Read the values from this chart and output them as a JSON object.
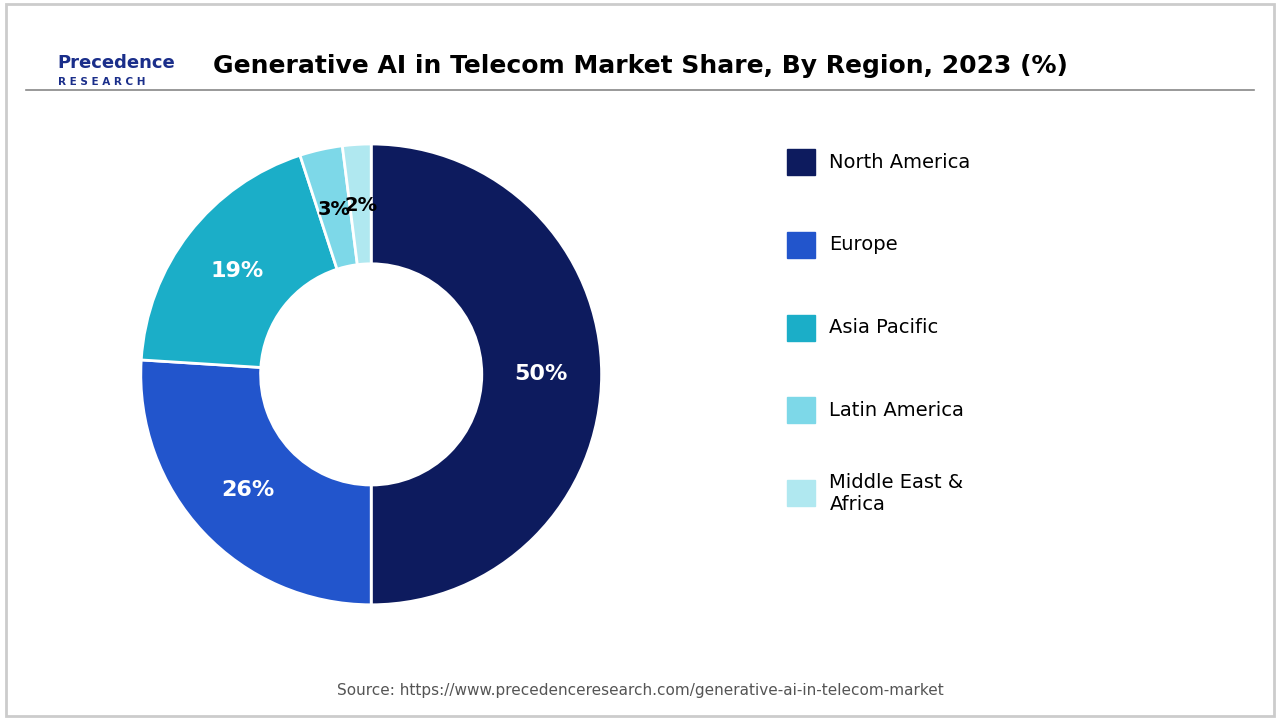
{
  "title": "Generative AI in Telecom Market Share, By Region, 2023 (%)",
  "labels": [
    "North America",
    "Europe",
    "Asia Pacific",
    "Latin America",
    "Middle East &\nAfrica"
  ],
  "values": [
    50,
    26,
    19,
    3,
    2
  ],
  "colors": [
    "#0d1b5e",
    "#2255cc",
    "#1baec8",
    "#7dd8e8",
    "#b0e8f0"
  ],
  "label_configs": [
    {
      "text": "50%",
      "color": "white",
      "size": 16
    },
    {
      "text": "26%",
      "color": "white",
      "size": 16
    },
    {
      "text": "19%",
      "color": "white",
      "size": 16
    },
    {
      "text": "3%",
      "color": "black",
      "size": 14
    },
    {
      "text": "2%",
      "color": "black",
      "size": 14
    }
  ],
  "source": "Source: https://www.precedenceresearch.com/generative-ai-in-telecom-market",
  "bg_color": "#ffffff",
  "logo_line1": "Precedence",
  "logo_line2": "R E S E A R C H",
  "logo_color": "#1a2e8a"
}
